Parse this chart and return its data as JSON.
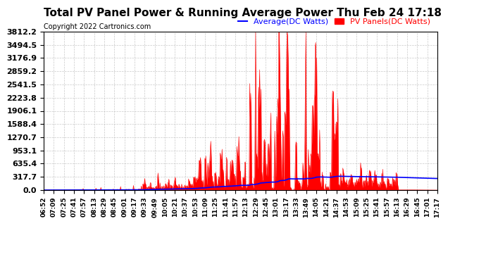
{
  "title": "Total PV Panel Power & Running Average Power Thu Feb 24 17:18",
  "copyright": "Copyright 2022 Cartronics.com",
  "legend_avg": "Average(DC Watts)",
  "legend_pv": "PV Panels(DC Watts)",
  "yticks": [
    0.0,
    317.7,
    635.4,
    953.1,
    1270.7,
    1588.4,
    1906.1,
    2223.8,
    2541.5,
    2859.2,
    3176.9,
    3494.5,
    3812.2
  ],
  "xtick_labels": [
    "06:52",
    "07:09",
    "07:25",
    "07:41",
    "07:57",
    "08:13",
    "08:29",
    "08:45",
    "09:01",
    "09:17",
    "09:33",
    "09:49",
    "10:05",
    "10:21",
    "10:37",
    "10:53",
    "11:09",
    "11:25",
    "11:41",
    "11:57",
    "12:13",
    "12:29",
    "12:45",
    "13:01",
    "13:17",
    "13:33",
    "13:49",
    "14:05",
    "14:21",
    "14:37",
    "14:53",
    "15:09",
    "15:25",
    "15:41",
    "15:57",
    "16:13",
    "16:29",
    "16:45",
    "17:01",
    "17:17"
  ],
  "avg_color": "#0000ff",
  "pv_color": "#ff0000",
  "pv_fill_color": "#ff0000",
  "background_color": "#ffffff",
  "grid_color": "#bbbbbb",
  "title_fontsize": 11,
  "copyright_fontsize": 7,
  "legend_fontsize": 8,
  "ylabel_fontsize": 8,
  "xlabel_fontsize": 6.5
}
